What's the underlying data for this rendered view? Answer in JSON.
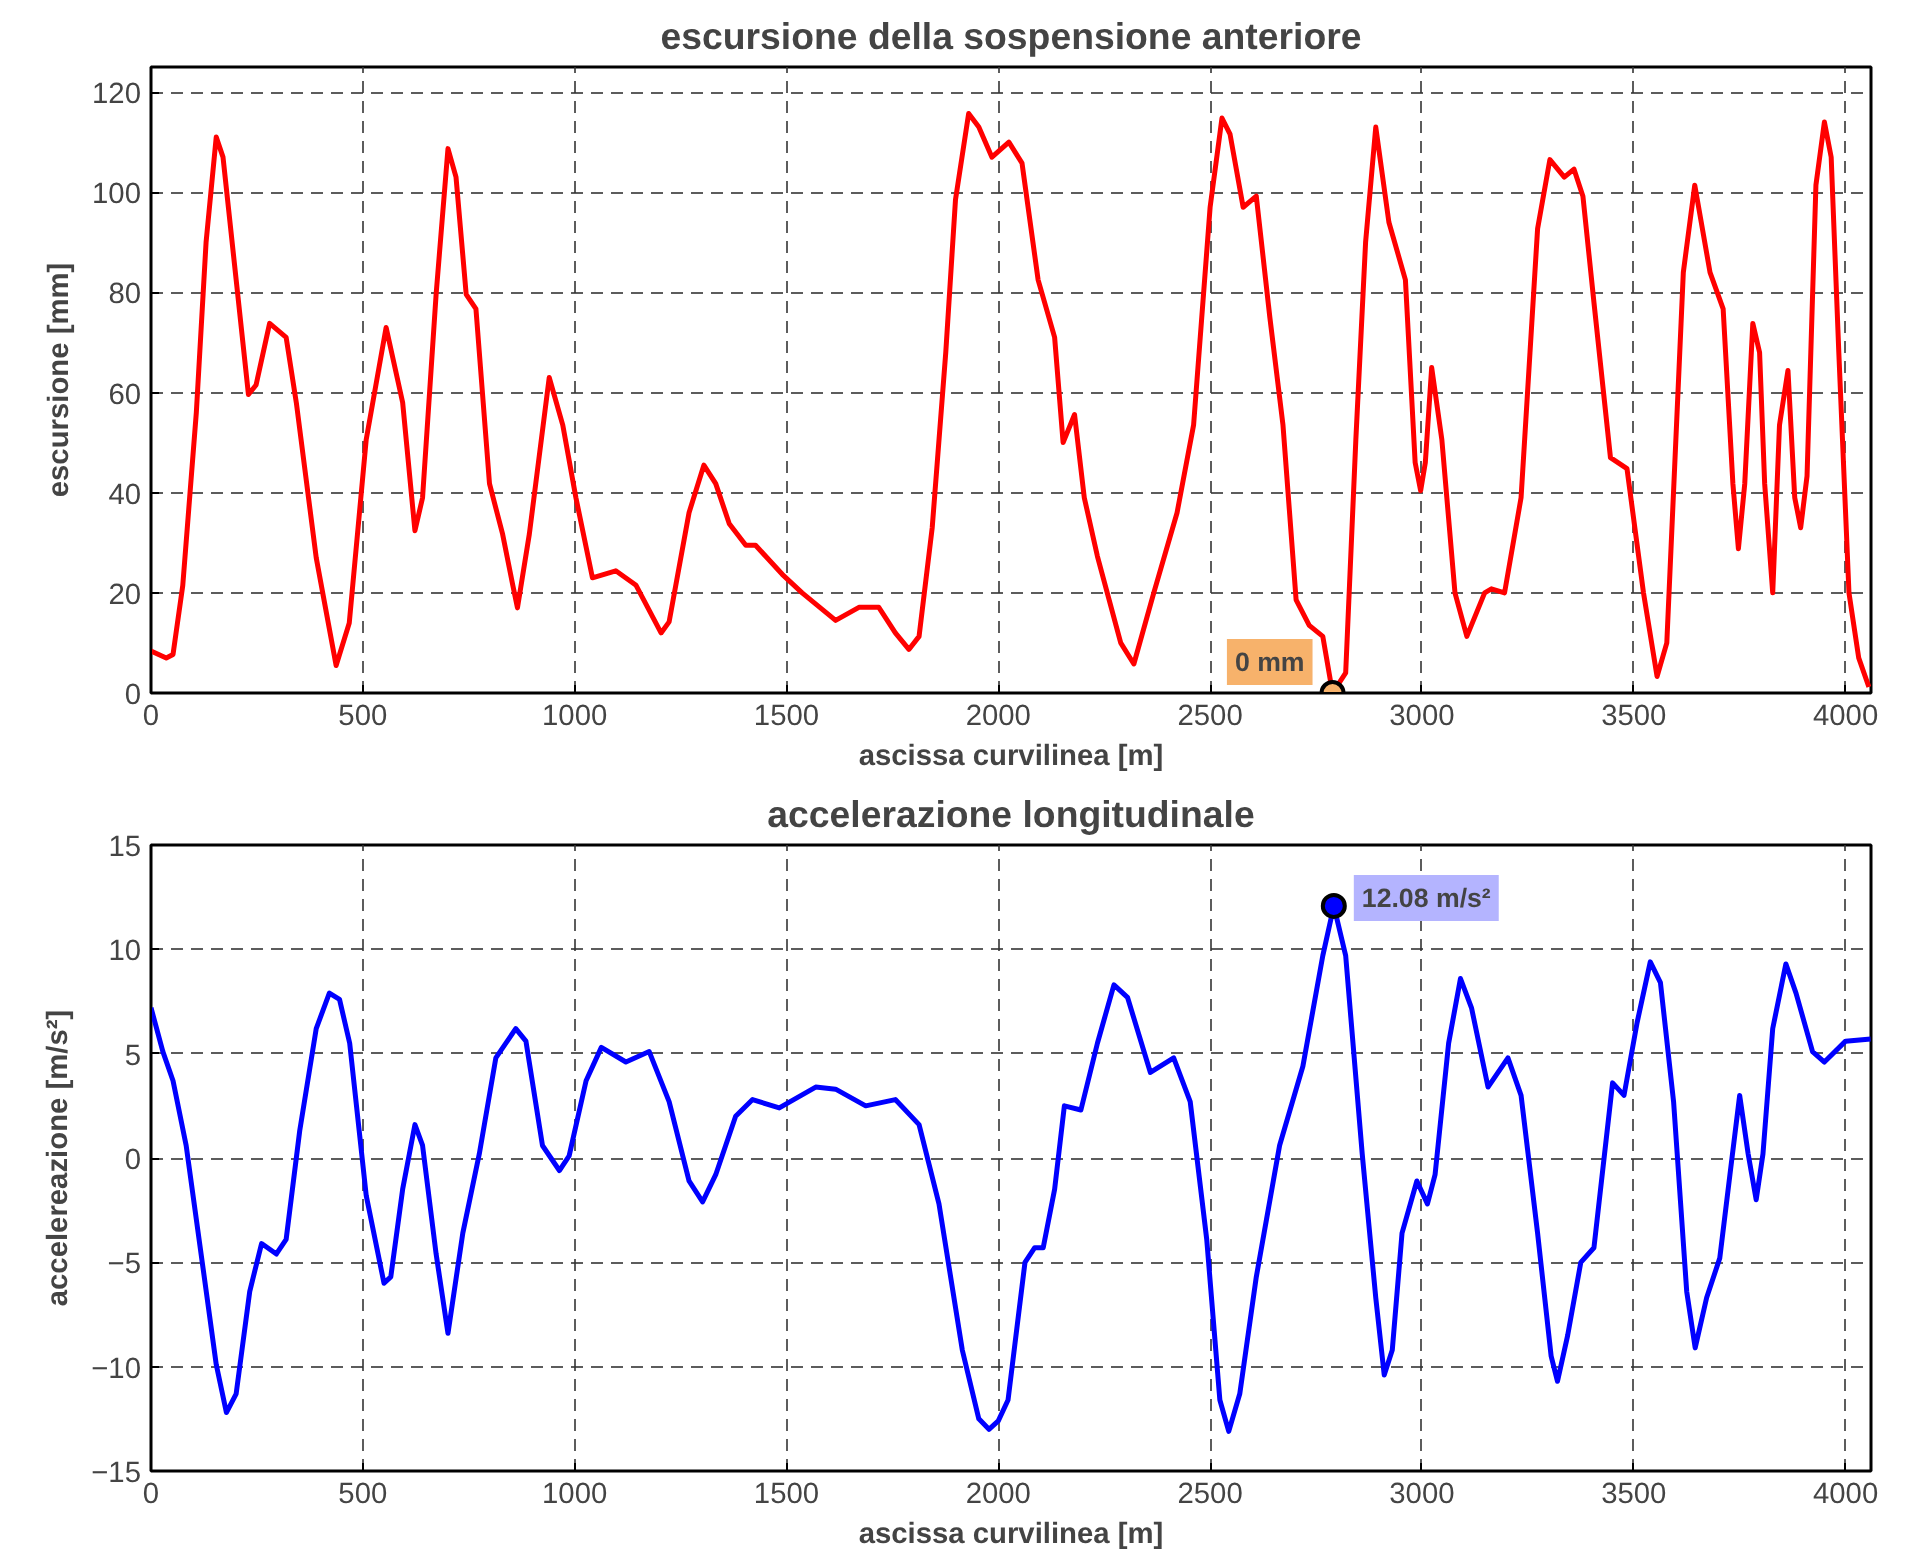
{
  "chart_data": [
    {
      "type": "line",
      "title": "escursione della sospensione anteriore",
      "xlabel": "ascissa curvilinea [m]",
      "ylabel": "escursione [mm]",
      "xlim": [
        0,
        4060
      ],
      "ylim": [
        0,
        125
      ],
      "xticks": [
        0,
        500,
        1000,
        1500,
        2000,
        2500,
        3000,
        3500,
        4000
      ],
      "yticks": [
        0,
        20,
        40,
        60,
        80,
        100,
        120
      ],
      "grid": true,
      "line_style": "solid",
      "marker": "none",
      "annotations": [
        {
          "text": "0 mm",
          "x": 2789,
          "y": 0
        }
      ],
      "series": [
        {
          "color": "#ff0000",
          "x": [
            0,
            36,
            52,
            75,
            107,
            130,
            154,
            170,
            201,
            230,
            248,
            280,
            319,
            343,
            390,
            437,
            468,
            508,
            555,
            594,
            623,
            641,
            673,
            701,
            720,
            744,
            767,
            799,
            830,
            854,
            865,
            893,
            940,
            972,
            1003,
            1042,
            1097,
            1145,
            1204,
            1223,
            1270,
            1305,
            1333,
            1365,
            1404,
            1427,
            1490,
            1537,
            1616,
            1671,
            1718,
            1757,
            1789,
            1813,
            1844,
            1876,
            1899,
            1930,
            1954,
            1985,
            2025,
            2056,
            2094,
            2133,
            2153,
            2180,
            2203,
            2234,
            2289,
            2320,
            2367,
            2422,
            2461,
            2500,
            2528,
            2547,
            2578,
            2609,
            2641,
            2672,
            2703,
            2734,
            2766,
            2789,
            2820,
            2844,
            2867,
            2891,
            2922,
            2961,
            2984,
            2997,
            3008,
            3023,
            3047,
            3078,
            3106,
            3148,
            3164,
            3195,
            3234,
            3273,
            3302,
            3336,
            3359,
            3380,
            3406,
            3445,
            3484,
            3523,
            3555,
            3578,
            3617,
            3644,
            3680,
            3711,
            3734,
            3747,
            3762,
            3781,
            3797,
            3809,
            3828,
            3844,
            3864,
            3880,
            3894,
            3909,
            3930,
            3950,
            3966,
            3984,
            4008,
            4031,
            4055
          ],
          "values": [
            8.4,
            7,
            7.7,
            21.5,
            56,
            90,
            111,
            107,
            82.5,
            59.6,
            61.5,
            73.8,
            71,
            58,
            27,
            5.5,
            14,
            50.6,
            73,
            58,
            32.4,
            39,
            79.6,
            108.7,
            103,
            79.6,
            76.7,
            41.8,
            31.7,
            21.5,
            17,
            31.7,
            63,
            53.5,
            39,
            23,
            24.4,
            21.5,
            12,
            14.2,
            36,
            45.5,
            41.8,
            33.8,
            29.5,
            29.5,
            23.7,
            20,
            14.5,
            17.1,
            17.1,
            12,
            8.7,
            11.3,
            33,
            68,
            98.5,
            115.7,
            113,
            107,
            110,
            105.8,
            82.5,
            71,
            50,
            55.6,
            39,
            27.3,
            10,
            5.8,
            20,
            36,
            53.5,
            97,
            114.8,
            111.6,
            97,
            99.2,
            75,
            53.5,
            18.6,
            13.5,
            11.3,
            0,
            4,
            50.6,
            90,
            113,
            94,
            82.5,
            46,
            40.4,
            46,
            65,
            50.6,
            20,
            11.3,
            20,
            20.8,
            20,
            39,
            92.7,
            106.5,
            103,
            104.6,
            99.2,
            78,
            47,
            44.8,
            20,
            3.3,
            10,
            84,
            101.4,
            84,
            76.7,
            41.8,
            28.8,
            41.8,
            73.8,
            68,
            41.8,
            20,
            53.5,
            64.4,
            39,
            33,
            43.3,
            101.4,
            114,
            107,
            68,
            20,
            7,
            1.2
          ]
        }
      ]
    },
    {
      "type": "line",
      "title": "accelerazione longitudinale",
      "xlabel": "ascissa curvilinea [m]",
      "ylabel": "accelereazione [m/s²]",
      "xlim": [
        0,
        4060
      ],
      "ylim": [
        -15,
        15
      ],
      "xticks": [
        0,
        500,
        1000,
        1500,
        2000,
        2500,
        3000,
        3500,
        4000
      ],
      "yticks": [
        -15,
        -10,
        -5,
        0,
        5,
        10,
        15
      ],
      "grid": true,
      "line_style": "solid",
      "marker": "none",
      "annotations": [
        {
          "text": "12.08 m/s²",
          "x": 2792,
          "y": 12.08
        }
      ],
      "series": [
        {
          "color": "#0000ff",
          "x": [
            0,
            28,
            52,
            83,
            123,
            154,
            178,
            201,
            233,
            261,
            296,
            319,
            351,
            390,
            421,
            445,
            469,
            508,
            550,
            566,
            594,
            623,
            641,
            673,
            701,
            736,
            775,
            814,
            861,
            885,
            924,
            964,
            987,
            1027,
            1063,
            1121,
            1176,
            1223,
            1270,
            1302,
            1333,
            1380,
            1420,
            1483,
            1569,
            1616,
            1687,
            1757,
            1813,
            1860,
            1915,
            1954,
            1978,
            2000,
            2023,
            2063,
            2086,
            2106,
            2133,
            2156,
            2195,
            2234,
            2273,
            2305,
            2359,
            2414,
            2453,
            2492,
            2523,
            2544,
            2570,
            2609,
            2664,
            2719,
            2766,
            2792,
            2820,
            2859,
            2891,
            2911,
            2930,
            2953,
            2988,
            3013,
            3031,
            3063,
            3091,
            3117,
            3156,
            3203,
            3234,
            3273,
            3305,
            3320,
            3344,
            3375,
            3406,
            3450,
            3477,
            3508,
            3539,
            3563,
            3594,
            3625,
            3645,
            3672,
            3703,
            3727,
            3750,
            3770,
            3789,
            3805,
            3828,
            3859,
            3883,
            3922,
            3950,
            4000,
            4059
          ],
          "values": [
            7.2,
            5.1,
            3.7,
            0.6,
            -5.3,
            -9.9,
            -12.2,
            -11.3,
            -6.4,
            -4.1,
            -4.6,
            -3.9,
            1.3,
            6.2,
            7.9,
            7.6,
            5.5,
            -1.8,
            -6,
            -5.7,
            -1.5,
            1.6,
            0.6,
            -4.6,
            -8.4,
            -3.6,
            0.2,
            4.8,
            6.2,
            5.6,
            0.6,
            -0.6,
            0.1,
            3.7,
            5.3,
            4.6,
            5.1,
            2.7,
            -1.1,
            -2.1,
            -0.8,
            2,
            2.8,
            2.4,
            3.4,
            3.3,
            2.5,
            2.8,
            1.6,
            -2.2,
            -9.2,
            -12.5,
            -13,
            -12.6,
            -11.6,
            -5,
            -4.3,
            -4.3,
            -1.5,
            2.5,
            2.3,
            5.5,
            8.3,
            7.7,
            4.1,
            4.8,
            2.7,
            -3.9,
            -11.6,
            -13.1,
            -11.3,
            -5.7,
            0.6,
            4.4,
            9.7,
            12.08,
            9.7,
            0.2,
            -6.7,
            -10.4,
            -9.2,
            -3.6,
            -1.1,
            -2.2,
            -0.8,
            5.5,
            8.6,
            7.2,
            3.4,
            4.8,
            3,
            -3.6,
            -9.5,
            -10.7,
            -8.5,
            -5,
            -4.3,
            3.6,
            3,
            6.5,
            9.4,
            8.4,
            2.7,
            -6.4,
            -9.1,
            -6.7,
            -4.8,
            -0.8,
            3,
            0.2,
            -2,
            0.2,
            6.2,
            9.3,
            7.9,
            5.1,
            4.6,
            5.6,
            5.7
          ]
        }
      ]
    }
  ]
}
